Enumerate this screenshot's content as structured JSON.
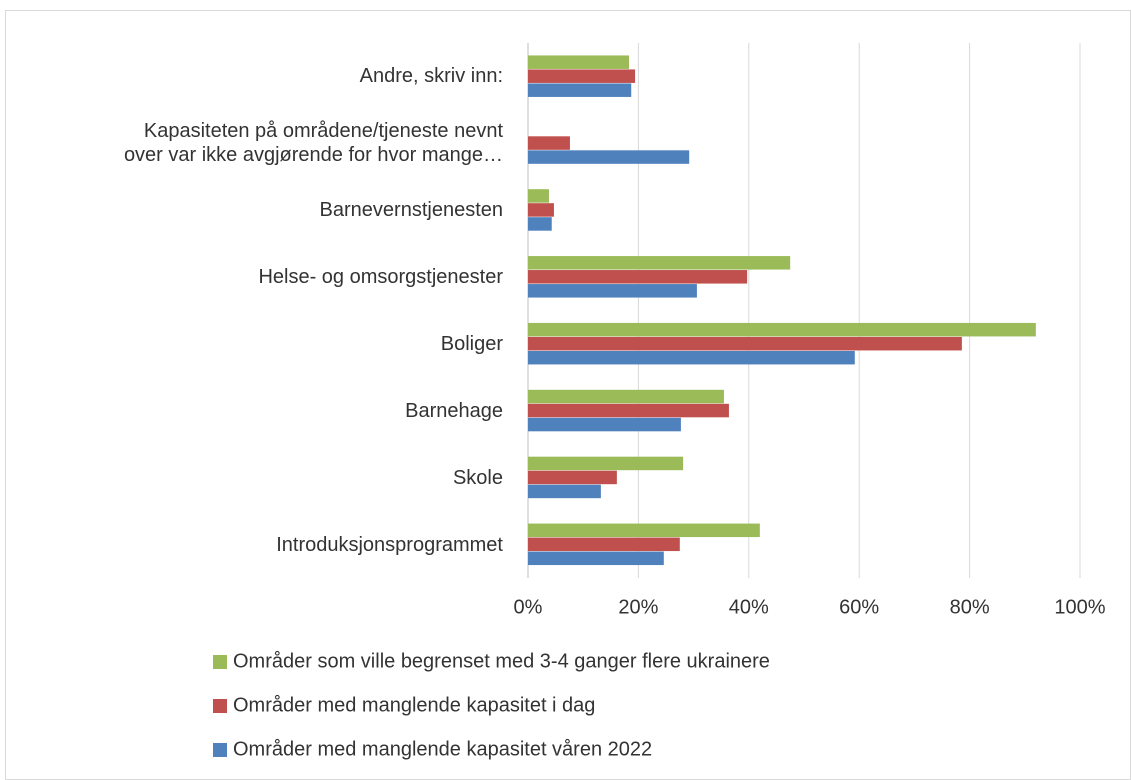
{
  "chart_data": {
    "type": "bar",
    "orientation": "horizontal",
    "categories": [
      "Introduksjonsprogrammet",
      "Skole",
      "Barnehage",
      "Boliger",
      "Helse- og omsorgstjenester",
      "Barnevernstjenesten",
      "Kapasiteten på områdene/tjeneste nevnt\nover var ikke avgjørende for hvor mange…",
      "Andre, skriv inn:"
    ],
    "series": [
      {
        "name": "Områder med manglende kapasitet våren 2022",
        "color": "#4f81bd",
        "values": [
          24.6,
          13.2,
          27.7,
          59.2,
          30.6,
          4.3,
          29.2,
          18.7
        ]
      },
      {
        "name": "Områder med manglende kapasitet i dag",
        "color": "#c0504d",
        "values": [
          27.5,
          16.1,
          36.4,
          78.6,
          39.7,
          4.7,
          7.6,
          19.4
        ]
      },
      {
        "name": "Områder som ville begrenset med 3-4 ganger flere ukrainere",
        "color": "#9bbb59",
        "values": [
          42.0,
          28.1,
          35.5,
          92.0,
          47.5,
          3.8,
          0,
          18.3
        ]
      }
    ],
    "xlim": [
      0,
      100
    ],
    "xticks": [
      {
        "value": 0,
        "label": "0%"
      },
      {
        "value": 20,
        "label": "20%"
      },
      {
        "value": 40,
        "label": "40%"
      },
      {
        "value": 60,
        "label": "60%"
      },
      {
        "value": 80,
        "label": "80%"
      },
      {
        "value": 100,
        "label": "100%"
      }
    ],
    "grid": true,
    "legend": "bottom"
  }
}
